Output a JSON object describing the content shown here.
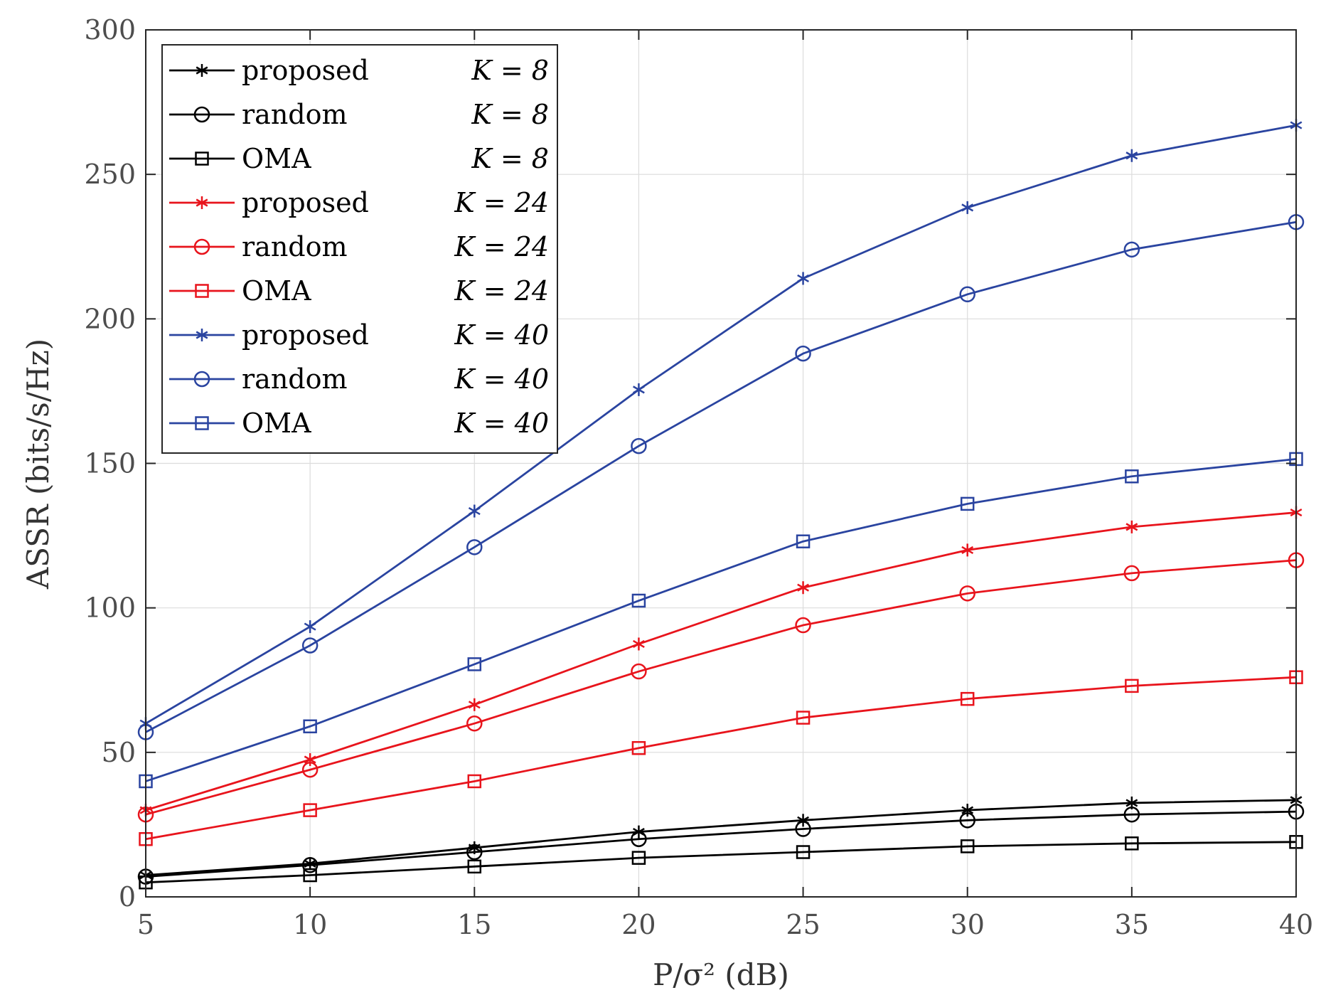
{
  "chart_data": {
    "type": "line",
    "title": "",
    "xlabel": "P/σ² (dB)",
    "ylabel": "ASSR (bits/s/Hz)",
    "xlim": [
      5,
      40
    ],
    "ylim": [
      0,
      300
    ],
    "x": [
      5,
      10,
      15,
      20,
      25,
      30,
      35,
      40
    ],
    "xticks": [
      "5",
      "10",
      "15",
      "20",
      "25",
      "30",
      "35",
      "40"
    ],
    "yticks": [
      "0",
      "50",
      "100",
      "150",
      "200",
      "250",
      "300"
    ],
    "xtick_values": [
      5,
      10,
      15,
      20,
      25,
      30,
      35,
      40
    ],
    "ytick_values": [
      0,
      50,
      100,
      150,
      200,
      250,
      300
    ],
    "grid": true,
    "legend_position": "top-left",
    "series": [
      {
        "name": "proposed",
        "k": "K = 8",
        "color": "#000000",
        "marker": "star",
        "values": [
          7.5,
          11.5,
          17,
          22.5,
          26.5,
          30,
          32.5,
          33.5
        ]
      },
      {
        "name": "random",
        "k": "K = 8",
        "color": "#000000",
        "marker": "circle",
        "values": [
          7,
          11,
          15.5,
          20,
          23.5,
          26.5,
          28.5,
          29.5
        ]
      },
      {
        "name": "OMA",
        "k": "K = 8",
        "color": "#000000",
        "marker": "square",
        "values": [
          5,
          7.5,
          10.5,
          13.5,
          15.5,
          17.5,
          18.5,
          19
        ]
      },
      {
        "name": "proposed",
        "k": "K = 24",
        "color": "#e8141c",
        "marker": "star",
        "values": [
          30,
          47.5,
          66.5,
          87.5,
          107,
          120,
          128,
          133
        ]
      },
      {
        "name": "random",
        "k": "K = 24",
        "color": "#e8141c",
        "marker": "circle",
        "values": [
          28.5,
          44,
          60,
          78,
          94,
          105,
          112,
          116.5
        ]
      },
      {
        "name": "OMA",
        "k": "K = 24",
        "color": "#e8141c",
        "marker": "square",
        "values": [
          20,
          30,
          40,
          51.5,
          62,
          68.5,
          73,
          76
        ]
      },
      {
        "name": "proposed",
        "k": "K = 40",
        "color": "#2a44a0",
        "marker": "star",
        "values": [
          60,
          93.5,
          133.5,
          175.5,
          214,
          238.5,
          256.5,
          267
        ]
      },
      {
        "name": "random",
        "k": "K = 40",
        "color": "#2a44a0",
        "marker": "circle",
        "values": [
          57,
          87,
          121,
          156,
          188,
          208.5,
          224,
          233.5
        ]
      },
      {
        "name": "OMA",
        "k": "K = 40",
        "color": "#2a44a0",
        "marker": "square",
        "values": [
          40,
          59,
          80.5,
          102.5,
          123,
          136,
          145.5,
          151.5
        ]
      }
    ]
  }
}
